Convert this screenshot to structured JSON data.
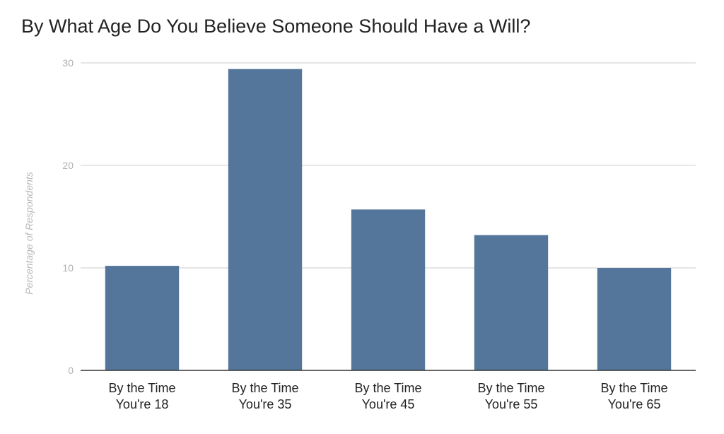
{
  "chart_data": {
    "type": "bar",
    "title": "By What Age Do You Believe Someone Should Have a Will?",
    "xlabel": "",
    "ylabel": "Percentage of Respondents",
    "categories": [
      [
        "By the Time",
        "You're 18"
      ],
      [
        "By the Time",
        "You're 35"
      ],
      [
        "By the Time",
        "You're 45"
      ],
      [
        "By the Time",
        "You're 55"
      ],
      [
        "By the Time",
        "You're 65"
      ]
    ],
    "values": [
      10.2,
      29.4,
      15.7,
      13.2,
      10.0
    ],
    "ylim": [
      0,
      30
    ],
    "yticks": [
      0,
      10,
      20,
      30
    ],
    "grid": true,
    "legend": "none",
    "bar_color": "#53769A",
    "gridline_color": "#cccccc",
    "baseline_color": "#333333"
  }
}
